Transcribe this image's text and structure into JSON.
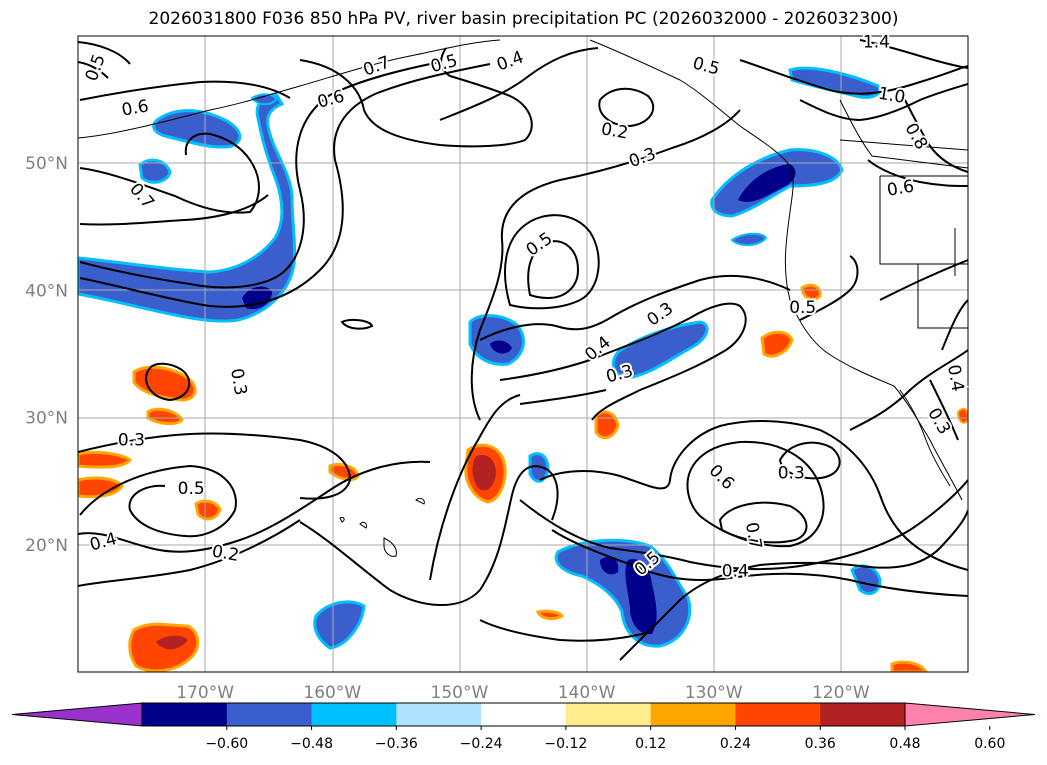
{
  "chart_data": {
    "type": "map-contour",
    "title": "2026031800 F036 850 hPa PV, river basin precipitation PC (2026032000 - 2026032300)",
    "lon_range": [
      -180,
      -110
    ],
    "lat_range": [
      10,
      60
    ],
    "grid": true,
    "x_ticks": [
      {
        "value": -170,
        "label": "170°W"
      },
      {
        "value": -160,
        "label": "160°W"
      },
      {
        "value": -150,
        "label": "150°W"
      },
      {
        "value": -140,
        "label": "140°W"
      },
      {
        "value": -130,
        "label": "130°W"
      },
      {
        "value": -120,
        "label": "120°W"
      }
    ],
    "y_ticks": [
      {
        "value": 50,
        "label": "50°N"
      },
      {
        "value": 40,
        "label": "40°N"
      },
      {
        "value": 30,
        "label": "30°N"
      },
      {
        "value": 20,
        "label": "20°N"
      }
    ],
    "colorbar": {
      "extend": "both",
      "bounds": [
        -0.72,
        -0.6,
        -0.48,
        -0.36,
        -0.24,
        -0.12,
        0.12,
        0.24,
        0.36,
        0.48,
        0.6,
        0.72
      ],
      "colors": [
        "#9932CC",
        "#00008B",
        "#3A5FCD",
        "#00BFFF",
        "#B0E2FF",
        "#FFFFFF",
        "#FFEC8B",
        "#FFA500",
        "#FF4500",
        "#B22222",
        "#FF82AB"
      ],
      "tick_labels": [
        "−0.60",
        "−0.48",
        "−0.36",
        "−0.24",
        "−0.12",
        "0.12",
        "0.24",
        "0.36",
        "0.48",
        "0.60"
      ]
    },
    "contour_labels": [
      {
        "text": "0.5",
        "lon": -178.6,
        "lat": 57.5,
        "angle": -70
      },
      {
        "text": "0.6",
        "lon": -175.5,
        "lat": 54.3,
        "angle": -10
      },
      {
        "text": "0.7",
        "lon": -175.0,
        "lat": 47.4,
        "angle": 50
      },
      {
        "text": "0.6",
        "lon": -160.1,
        "lat": 55.0,
        "angle": -15
      },
      {
        "text": "0.7",
        "lon": -156.5,
        "lat": 57.6,
        "angle": -20
      },
      {
        "text": "0.5",
        "lon": -151.2,
        "lat": 57.8,
        "angle": -15
      },
      {
        "text": "0.4",
        "lon": -146.0,
        "lat": 58.0,
        "angle": -20
      },
      {
        "text": "0.2",
        "lon": -137.8,
        "lat": 52.5,
        "angle": 10
      },
      {
        "text": "0.3",
        "lon": -135.6,
        "lat": 50.4,
        "angle": -20
      },
      {
        "text": "0.5",
        "lon": -130.6,
        "lat": 57.6,
        "angle": 15
      },
      {
        "text": "1.4",
        "lon": -117.2,
        "lat": 59.5,
        "angle": 0
      },
      {
        "text": "1.0",
        "lon": -116.0,
        "lat": 55.3,
        "angle": 10
      },
      {
        "text": "0.8",
        "lon": -114.1,
        "lat": 52.1,
        "angle": 60
      },
      {
        "text": "0.6",
        "lon": -115.3,
        "lat": 48.0,
        "angle": -10
      },
      {
        "text": "0.5",
        "lon": -143.7,
        "lat": 43.6,
        "angle": -35
      },
      {
        "text": "0.3",
        "lon": -134.2,
        "lat": 38.1,
        "angle": -35
      },
      {
        "text": "0.4",
        "lon": -139.1,
        "lat": 35.4,
        "angle": -40
      },
      {
        "text": "0.3",
        "lon": -137.4,
        "lat": 33.4,
        "angle": -15
      },
      {
        "text": "0.5",
        "lon": -123.0,
        "lat": 38.6,
        "angle": 0
      },
      {
        "text": "0.4",
        "lon": -111.0,
        "lat": 33.1,
        "angle": 80
      },
      {
        "text": "0.3",
        "lon": -112.3,
        "lat": 29.7,
        "angle": 60
      },
      {
        "text": "0.3",
        "lon": -167.4,
        "lat": 32.8,
        "angle": 80
      },
      {
        "text": "0.3",
        "lon": -175.8,
        "lat": 28.2,
        "angle": 0
      },
      {
        "text": "0.5",
        "lon": -171.1,
        "lat": 24.4,
        "angle": 0
      },
      {
        "text": "0.4",
        "lon": -178.0,
        "lat": 20.2,
        "angle": -15
      },
      {
        "text": "0.2",
        "lon": -168.4,
        "lat": 19.3,
        "angle": 10
      },
      {
        "text": "0.6",
        "lon": -129.4,
        "lat": 25.3,
        "angle": 45
      },
      {
        "text": "0.3",
        "lon": -123.9,
        "lat": 25.6,
        "angle": 0
      },
      {
        "text": "0.7",
        "lon": -126.9,
        "lat": 20.7,
        "angle": 80
      },
      {
        "text": "0.5",
        "lon": -135.2,
        "lat": 18.5,
        "angle": -40
      },
      {
        "text": "0.4",
        "lon": -128.3,
        "lat": 17.9,
        "angle": 0
      }
    ]
  }
}
